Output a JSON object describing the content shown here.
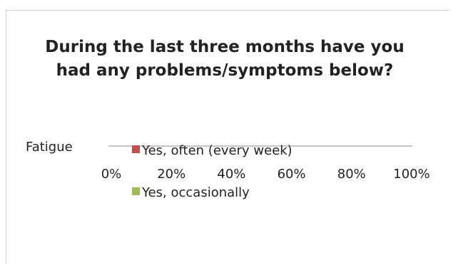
{
  "chart_data": {
    "type": "bar",
    "orientation": "horizontal",
    "stacked": true,
    "title": "During the last three months have you had any problems/symptoms below?",
    "categories": [
      "Fatigue"
    ],
    "series": [
      {
        "name": "Yes, often (every week)",
        "color": "#c0504d",
        "values": [
          0
        ]
      },
      {
        "name": "Yes, occasionally",
        "color": "#9bbb59",
        "values": [
          0
        ]
      }
    ],
    "xlim": [
      0,
      100
    ],
    "x_ticks": [
      "0%",
      "20%",
      "40%",
      "60%",
      "80%",
      "100%"
    ],
    "legend_placement": "bottom",
    "grid": false
  }
}
